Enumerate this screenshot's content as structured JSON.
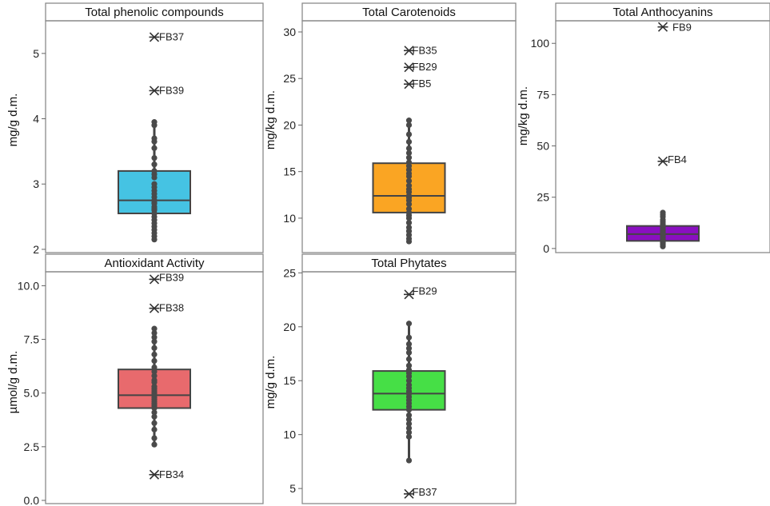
{
  "chart_data": [
    {
      "type": "box",
      "title": "Total phenolic compounds",
      "ylabel": "mg/g d.m.",
      "yticks": [
        2,
        3,
        4,
        5
      ],
      "ylim": [
        1.95,
        5.5
      ],
      "color": "#45c3e3",
      "box": {
        "min": 2.15,
        "q1": 2.55,
        "median": 2.75,
        "q3": 3.2,
        "max": 3.95
      },
      "points": [
        2.15,
        2.2,
        2.25,
        2.3,
        2.35,
        2.4,
        2.45,
        2.5,
        2.55,
        2.6,
        2.62,
        2.65,
        2.7,
        2.72,
        2.75,
        2.8,
        2.85,
        2.9,
        2.95,
        3.0,
        3.1,
        3.15,
        3.2,
        3.3,
        3.4,
        3.55,
        3.65,
        3.7,
        3.9,
        3.95
      ],
      "outliers": [
        {
          "label": "FB37",
          "value": 5.25
        },
        {
          "label": "FB39",
          "value": 4.43
        }
      ]
    },
    {
      "type": "box",
      "title": "Total Carotenoids",
      "ylabel": "mg/kg d.m.",
      "yticks": [
        10,
        15,
        20,
        25,
        30
      ],
      "ylim": [
        6.3,
        31.2
      ],
      "color": "#faa523",
      "box": {
        "min": 7.5,
        "q1": 10.6,
        "median": 12.4,
        "q3": 15.9,
        "max": 20.5
      },
      "points": [
        7.5,
        7.8,
        8.2,
        8.6,
        9.0,
        9.5,
        10.0,
        10.3,
        10.6,
        11.0,
        11.5,
        11.9,
        12.2,
        12.4,
        12.8,
        13.1,
        13.5,
        14.0,
        14.5,
        14.8,
        15.2,
        15.6,
        16.0,
        16.5,
        17.0,
        17.5,
        18.2,
        19.0,
        20.0,
        20.5
      ],
      "outliers": [
        {
          "label": "FB35",
          "value": 28.0
        },
        {
          "label": "FB29",
          "value": 26.2
        },
        {
          "label": "FB5",
          "value": 24.4
        }
      ]
    },
    {
      "type": "box",
      "title": "Total Anthocyanins",
      "ylabel": "mg/kg d.m.",
      "yticks": [
        0,
        25,
        50,
        75,
        100
      ],
      "ylim": [
        -2,
        111
      ],
      "color": "#8a0fc1",
      "box": {
        "min": 1.0,
        "q1": 3.7,
        "median": 7.0,
        "q3": 11.0,
        "max": 17.5
      },
      "points": [
        1.0,
        1.5,
        2.0,
        2.5,
        3.0,
        3.5,
        4.0,
        4.5,
        5.0,
        5.5,
        6.0,
        6.5,
        7.0,
        7.5,
        8.0,
        8.5,
        9.0,
        10.0,
        11.0,
        12.0,
        13.0,
        14.0,
        15.5,
        16.5,
        17.5
      ],
      "outliers": [
        {
          "label": "FB9",
          "value": 108.0
        },
        {
          "label": "FB4",
          "value": 42.5
        }
      ]
    },
    {
      "type": "box",
      "title": "Antioxidant Activity",
      "ylabel": "µmol/g d.m.",
      "yticks": [
        "0.0",
        "2.5",
        "5.0",
        "7.5",
        "10.0"
      ],
      "ylim": [
        -0.15,
        10.65
      ],
      "color": "#e86a6d",
      "box": {
        "min": 2.6,
        "q1": 4.3,
        "median": 4.9,
        "q3": 6.1,
        "max": 8.0
      },
      "points": [
        2.6,
        2.9,
        3.3,
        3.6,
        3.9,
        4.1,
        4.3,
        4.4,
        4.5,
        4.6,
        4.7,
        4.8,
        4.9,
        5.0,
        5.1,
        5.2,
        5.3,
        5.5,
        5.6,
        5.8,
        6.0,
        6.2,
        6.5,
        6.8,
        7.1,
        7.4,
        7.6,
        7.8,
        8.0
      ],
      "outliers": [
        {
          "label": "FB39",
          "value": 10.3
        },
        {
          "label": "FB38",
          "value": 8.95
        },
        {
          "label": "FB34",
          "value": 1.2
        }
      ]
    },
    {
      "type": "box",
      "title": "Total Phytates",
      "ylabel": "mg/g d.m.",
      "yticks": [
        5,
        10,
        15,
        20,
        25
      ],
      "ylim": [
        3.6,
        25.1
      ],
      "color": "#46df46",
      "box": {
        "min": 7.6,
        "q1": 12.3,
        "median": 13.8,
        "q3": 15.9,
        "max": 20.3
      },
      "points": [
        7.6,
        9.8,
        10.2,
        10.6,
        11.0,
        11.4,
        11.8,
        12.3,
        12.6,
        12.9,
        13.2,
        13.5,
        13.8,
        14.0,
        14.3,
        14.6,
        15.0,
        15.4,
        15.7,
        16.0,
        16.4,
        17.0,
        17.6,
        18.0,
        18.4,
        19.0,
        20.3
      ],
      "outliers": [
        {
          "label": "FB29",
          "value": 23.0
        },
        {
          "label": "FB37",
          "value": 4.5
        }
      ]
    }
  ]
}
